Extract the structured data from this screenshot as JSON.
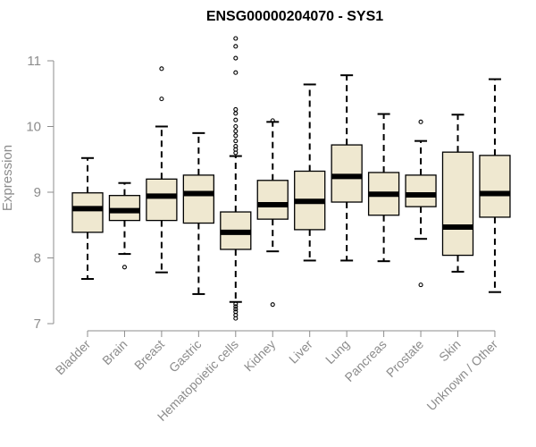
{
  "chart_data": {
    "type": "boxplot",
    "title": "ENSG00000204070 - SYS1",
    "xlabel": "",
    "ylabel": "Expression",
    "ylim": [
      7,
      11
    ],
    "yticks": [
      7,
      8,
      9,
      10,
      11
    ],
    "grid": false,
    "legend": "none",
    "colors": {
      "box_fill": "#efe8d0",
      "box_stroke": "#000000",
      "axis": "#8c8c8c",
      "median": "#000000"
    },
    "categories": [
      "Bladder",
      "Brain",
      "Breast",
      "Gastric",
      "Hematopoietic cells",
      "Kidney",
      "Liver",
      "Lung",
      "Pancreas",
      "Prostate",
      "Skin",
      "Unknown / Other"
    ],
    "boxes": [
      {
        "category": "Bladder",
        "whisker_low": 7.68,
        "q1": 8.39,
        "median": 8.75,
        "q3": 8.99,
        "whisker_high": 9.52,
        "outliers": []
      },
      {
        "category": "Brain",
        "whisker_low": 8.06,
        "q1": 8.57,
        "median": 8.72,
        "q3": 8.95,
        "whisker_high": 9.14,
        "outliers": [
          7.86
        ]
      },
      {
        "category": "Breast",
        "whisker_low": 7.78,
        "q1": 8.57,
        "median": 8.94,
        "q3": 9.2,
        "whisker_high": 10.0,
        "outliers": [
          10.42,
          10.88
        ]
      },
      {
        "category": "Gastric",
        "whisker_low": 7.45,
        "q1": 8.53,
        "median": 8.98,
        "q3": 9.26,
        "whisker_high": 9.9,
        "outliers": []
      },
      {
        "category": "Hematopoietic cells",
        "whisker_low": 7.33,
        "q1": 8.13,
        "median": 8.39,
        "q3": 8.7,
        "whisker_high": 9.55,
        "outliers": [
          7.08,
          7.13,
          7.18,
          7.22,
          7.26,
          7.3,
          9.6,
          9.65,
          9.7,
          9.78,
          9.86,
          9.93,
          10.0,
          10.1,
          10.2,
          10.26,
          10.82,
          11.04,
          11.22,
          11.34
        ]
      },
      {
        "category": "Kidney",
        "whisker_low": 8.1,
        "q1": 8.59,
        "median": 8.81,
        "q3": 9.18,
        "whisker_high": 10.07,
        "outliers": [
          7.29,
          10.09
        ]
      },
      {
        "category": "Liver",
        "whisker_low": 7.96,
        "q1": 8.43,
        "median": 8.86,
        "q3": 9.32,
        "whisker_high": 10.64,
        "outliers": []
      },
      {
        "category": "Lung",
        "whisker_low": 7.96,
        "q1": 8.85,
        "median": 9.24,
        "q3": 9.72,
        "whisker_high": 10.78,
        "outliers": []
      },
      {
        "category": "Pancreas",
        "whisker_low": 7.95,
        "q1": 8.65,
        "median": 8.97,
        "q3": 9.3,
        "whisker_high": 10.19,
        "outliers": []
      },
      {
        "category": "Prostate",
        "whisker_low": 8.29,
        "q1": 8.78,
        "median": 8.96,
        "q3": 9.26,
        "whisker_high": 9.78,
        "outliers": [
          7.59,
          10.07
        ]
      },
      {
        "category": "Skin",
        "whisker_low": 7.79,
        "q1": 8.04,
        "median": 8.47,
        "q3": 9.61,
        "whisker_high": 10.18,
        "outliers": []
      },
      {
        "category": "Unknown / Other",
        "whisker_low": 7.48,
        "q1": 8.62,
        "median": 8.98,
        "q3": 9.56,
        "whisker_high": 10.72,
        "outliers": []
      }
    ]
  }
}
